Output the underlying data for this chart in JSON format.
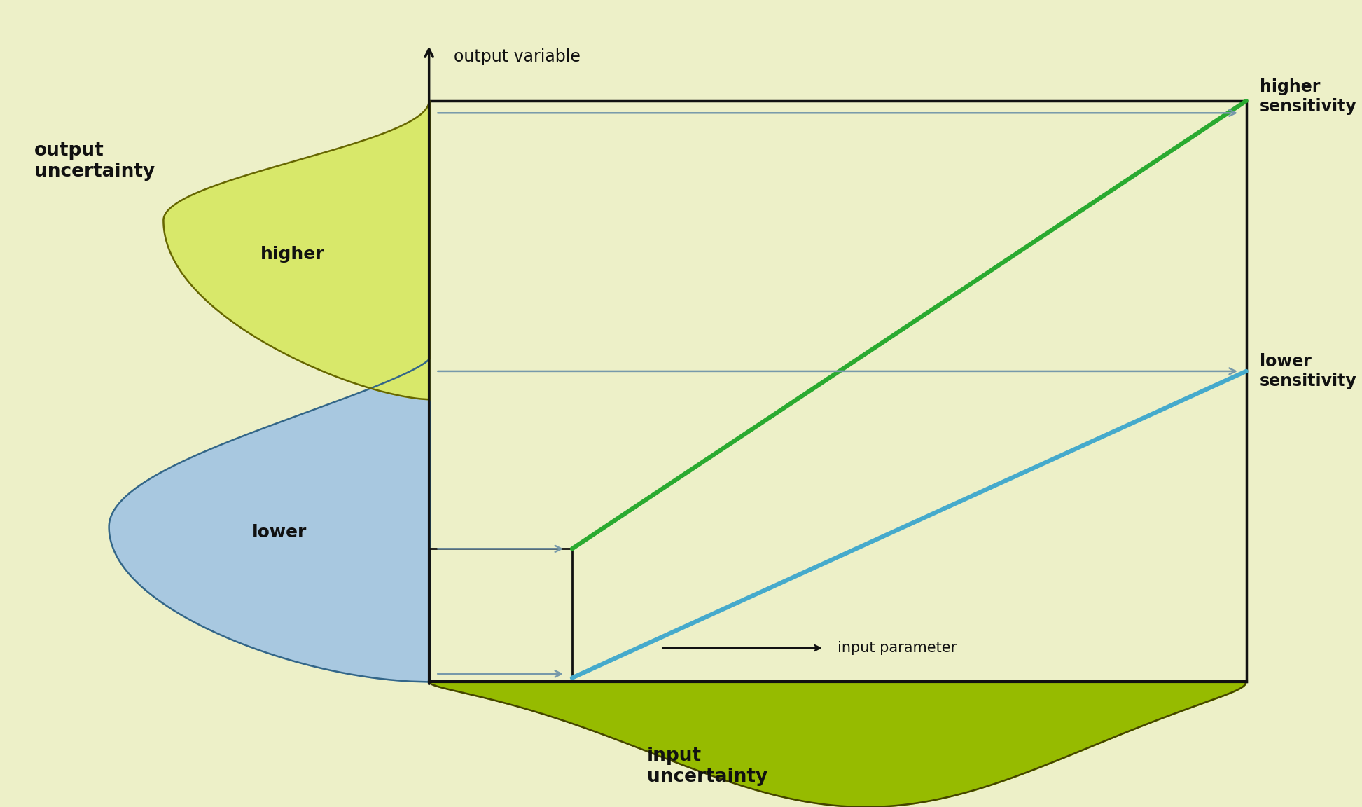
{
  "bg_color": "#edf0c8",
  "chart_l": 0.315,
  "chart_b": 0.155,
  "chart_r": 0.915,
  "chart_t": 0.875,
  "output_var_label": "output variable",
  "input_param_label": "input parameter",
  "output_uncertainty_label": "output\nuncertainty",
  "input_uncertainty_label": "input\nuncertainty",
  "higher_label": "higher",
  "lower_label": "lower",
  "higher_sensitivity_label": "higher\nsensitivity",
  "lower_sensitivity_label": "lower\nsensitivity",
  "green_line_color": "#2aaa30",
  "blue_line_color": "#45aacc",
  "yellow_green_fill": "#d8e86a",
  "blue_fill": "#a8c8e0",
  "lime_fill": "#96bb00",
  "outline_color": "#111111",
  "text_color": "#111111",
  "arrow_color": "#7799aa",
  "yg_outline": "#666600",
  "blue_outline": "#336688",
  "lime_outline": "#444400"
}
